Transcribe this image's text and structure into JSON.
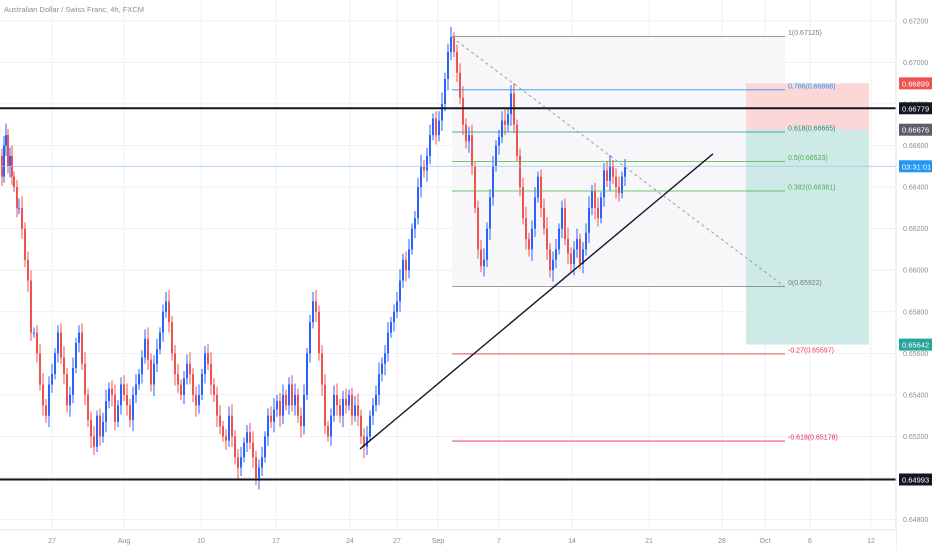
{
  "header": {
    "symbol_title": "Australian Dollar / Swiss Franc, 4h, FXCM"
  },
  "colors": {
    "up": "#2962ff",
    "down": "#ef5350",
    "grid": "#eef1f5",
    "axis_text": "#8a8e99",
    "stop_zone": "#fcd7d7",
    "target_zone": "#cdeae6",
    "fib_zone": "#f7f7f9"
  },
  "chart_data": {
    "type": "candlestick",
    "timeframe": "4h",
    "ylim": [
      0.6475,
      0.673
    ],
    "y_ticks": [
      "0.67200",
      "0.67000",
      "0.66800",
      "0.66600",
      "0.66400",
      "0.66200",
      "0.66000",
      "0.65800",
      "0.65600",
      "0.65400",
      "0.65200",
      "0.65000",
      "0.64800"
    ],
    "x_ticks": [
      "27",
      "Aug",
      "10",
      "17",
      "24",
      "27",
      "Sep",
      "7",
      "14",
      "21",
      "28",
      "Oct",
      "6",
      "12"
    ],
    "price_path": [
      [
        0,
        0.6655
      ],
      [
        2,
        0.6645
      ],
      [
        4,
        0.666
      ],
      [
        6,
        0.6665
      ],
      [
        8,
        0.665
      ],
      [
        10,
        0.6655
      ],
      [
        12,
        0.6645
      ],
      [
        14,
        0.664
      ],
      [
        17,
        0.663
      ],
      [
        19,
        0.663
      ],
      [
        22,
        0.662
      ],
      [
        25,
        0.6605
      ],
      [
        28,
        0.6595
      ],
      [
        31,
        0.657
      ],
      [
        34,
        0.657
      ],
      [
        37,
        0.656
      ],
      [
        40,
        0.6545
      ],
      [
        43,
        0.6535
      ],
      [
        46,
        0.653
      ],
      [
        49,
        0.6545
      ],
      [
        52,
        0.655
      ],
      [
        55,
        0.656
      ],
      [
        58,
        0.657
      ],
      [
        61,
        0.6558
      ],
      [
        64,
        0.655
      ],
      [
        67,
        0.6535
      ],
      [
        70,
        0.654
      ],
      [
        73,
        0.6553
      ],
      [
        76,
        0.6565
      ],
      [
        79,
        0.657
      ],
      [
        82,
        0.6555
      ],
      [
        85,
        0.654
      ],
      [
        88,
        0.6528
      ],
      [
        91,
        0.652
      ],
      [
        94,
        0.6515
      ],
      [
        97,
        0.653
      ],
      [
        100,
        0.652
      ],
      [
        103,
        0.6527
      ],
      [
        106,
        0.6537
      ],
      [
        109,
        0.6543
      ],
      [
        112,
        0.654
      ],
      [
        115,
        0.6527
      ],
      [
        118,
        0.6535
      ],
      [
        121,
        0.6545
      ],
      [
        124,
        0.654
      ],
      [
        127,
        0.6535
      ],
      [
        130,
        0.6528
      ],
      [
        133,
        0.654
      ],
      [
        136,
        0.6545
      ],
      [
        139,
        0.655
      ],
      [
        142,
        0.6558
      ],
      [
        145,
        0.6567
      ],
      [
        148,
        0.6557
      ],
      [
        151,
        0.6545
      ],
      [
        154,
        0.6555
      ],
      [
        157,
        0.6562
      ],
      [
        160,
        0.657
      ],
      [
        163,
        0.658
      ],
      [
        166,
        0.6585
      ],
      [
        169,
        0.6575
      ],
      [
        172,
        0.656
      ],
      [
        175,
        0.655
      ],
      [
        178,
        0.6545
      ],
      [
        181,
        0.654
      ],
      [
        184,
        0.6548
      ],
      [
        187,
        0.6555
      ],
      [
        190,
        0.655
      ],
      [
        193,
        0.654
      ],
      [
        196,
        0.6535
      ],
      [
        199,
        0.654
      ],
      [
        202,
        0.655
      ],
      [
        205,
        0.656
      ],
      [
        208,
        0.6555
      ],
      [
        211,
        0.6545
      ],
      [
        214,
        0.654
      ],
      [
        217,
        0.653
      ],
      [
        220,
        0.6525
      ],
      [
        223,
        0.652
      ],
      [
        226,
        0.6518
      ],
      [
        229,
        0.653
      ],
      [
        232,
        0.652
      ],
      [
        235,
        0.651
      ],
      [
        238,
        0.6505
      ],
      [
        241,
        0.651
      ],
      [
        244,
        0.6517
      ],
      [
        247,
        0.6522
      ],
      [
        250,
        0.6517
      ],
      [
        253,
        0.651
      ],
      [
        256,
        0.65
      ],
      [
        259,
        0.6505
      ],
      [
        262,
        0.651
      ],
      [
        265,
        0.652
      ],
      [
        268,
        0.653
      ],
      [
        271,
        0.6527
      ],
      [
        274,
        0.6533
      ],
      [
        277,
        0.6537
      ],
      [
        280,
        0.653
      ],
      [
        283,
        0.654
      ],
      [
        286,
        0.6535
      ],
      [
        289,
        0.6545
      ],
      [
        292,
        0.6535
      ],
      [
        295,
        0.654
      ],
      [
        298,
        0.653
      ],
      [
        301,
        0.6525
      ],
      [
        304,
        0.654
      ],
      [
        307,
        0.656
      ],
      [
        310,
        0.6575
      ],
      [
        313,
        0.6585
      ],
      [
        316,
        0.658
      ],
      [
        319,
        0.656
      ],
      [
        322,
        0.6545
      ],
      [
        325,
        0.6525
      ],
      [
        328,
        0.652
      ],
      [
        331,
        0.653
      ],
      [
        334,
        0.654
      ],
      [
        337,
        0.6535
      ],
      [
        340,
        0.653
      ],
      [
        343,
        0.6538
      ],
      [
        346,
        0.6535
      ],
      [
        349,
        0.654
      ],
      [
        352,
        0.653
      ],
      [
        355,
        0.6535
      ],
      [
        358,
        0.653
      ],
      [
        361,
        0.652
      ],
      [
        364,
        0.6515
      ],
      [
        367,
        0.652
      ],
      [
        370,
        0.653
      ],
      [
        373,
        0.6535
      ],
      [
        376,
        0.654
      ],
      [
        379,
        0.655
      ],
      [
        382,
        0.6555
      ],
      [
        385,
        0.656
      ],
      [
        388,
        0.657
      ],
      [
        391,
        0.6575
      ],
      [
        394,
        0.658
      ],
      [
        397,
        0.6585
      ],
      [
        400,
        0.6595
      ],
      [
        403,
        0.6605
      ],
      [
        406,
        0.66
      ],
      [
        409,
        0.661
      ],
      [
        412,
        0.662
      ],
      [
        415,
        0.6625
      ],
      [
        418,
        0.664
      ],
      [
        421,
        0.665
      ],
      [
        424,
        0.6648
      ],
      [
        427,
        0.6655
      ],
      [
        430,
        0.6665
      ],
      [
        433,
        0.6673
      ],
      [
        436,
        0.6665
      ],
      [
        439,
        0.6672
      ],
      [
        442,
        0.668
      ],
      [
        445,
        0.6692
      ],
      [
        448,
        0.6705
      ],
      [
        451,
        0.6712
      ],
      [
        454,
        0.6705
      ],
      [
        457,
        0.6695
      ],
      [
        460,
        0.6683
      ],
      [
        463,
        0.667
      ],
      [
        466,
        0.6662
      ],
      [
        469,
        0.6665
      ],
      [
        472,
        0.665
      ],
      [
        475,
        0.663
      ],
      [
        478,
        0.661
      ],
      [
        481,
        0.6602
      ],
      [
        484,
        0.6605
      ],
      [
        487,
        0.662
      ],
      [
        490,
        0.6635
      ],
      [
        493,
        0.665
      ],
      [
        496,
        0.666
      ],
      [
        499,
        0.6664
      ],
      [
        502,
        0.6672
      ],
      [
        505,
        0.667
      ],
      [
        508,
        0.6675
      ],
      [
        511,
        0.6685
      ],
      [
        514,
        0.667
      ],
      [
        517,
        0.6655
      ],
      [
        520,
        0.664
      ],
      [
        523,
        0.6625
      ],
      [
        526,
        0.6615
      ],
      [
        529,
        0.661
      ],
      [
        532,
        0.662
      ],
      [
        535,
        0.6635
      ],
      [
        538,
        0.6645
      ],
      [
        541,
        0.663
      ],
      [
        544,
        0.662
      ],
      [
        547,
        0.661
      ],
      [
        550,
        0.66
      ],
      [
        553,
        0.6605
      ],
      [
        556,
        0.661
      ],
      [
        559,
        0.662
      ],
      [
        562,
        0.663
      ],
      [
        565,
        0.6615
      ],
      [
        568,
        0.6608
      ],
      [
        571,
        0.6603
      ],
      [
        574,
        0.661
      ],
      [
        577,
        0.6615
      ],
      [
        580,
        0.6603
      ],
      [
        583,
        0.661
      ],
      [
        586,
        0.6618
      ],
      [
        589,
        0.663
      ],
      [
        592,
        0.6638
      ],
      [
        595,
        0.663
      ],
      [
        598,
        0.6625
      ],
      [
        601,
        0.6635
      ],
      [
        604,
        0.6648
      ],
      [
        607,
        0.6643
      ],
      [
        610,
        0.665
      ],
      [
        613,
        0.6645
      ],
      [
        616,
        0.664
      ],
      [
        619,
        0.6637
      ],
      [
        622,
        0.6645
      ],
      [
        625,
        0.665
      ]
    ],
    "horizontal_levels": [
      {
        "price": 0.66779,
        "label": "0.66779",
        "color": "#131722"
      },
      {
        "price": 0.64993,
        "label": "0.64993",
        "color": "#131722"
      }
    ],
    "current_price": {
      "price": 0.665,
      "label": "03:31:01",
      "color": "#2196f3"
    },
    "price_labels": [
      {
        "price": 0.66899,
        "label": "0.66899",
        "color": "#ef5350"
      },
      {
        "price": 0.66676,
        "label": "0.66676",
        "color": "#5d606b"
      },
      {
        "price": 0.65642,
        "label": "0.65642",
        "color": "#26a69a"
      }
    ],
    "fib": [
      {
        "price": 0.67125,
        "label": "1(0.67125)",
        "color": "#787b86"
      },
      {
        "price": 0.66868,
        "label": "0.786(0.66868)",
        "color": "#2196f3"
      },
      {
        "price": 0.66665,
        "label": "0.618(0.66665)",
        "color": "#089981"
      },
      {
        "price": 0.66523,
        "label": "0.5(0.66523)",
        "color": "#4caf50"
      },
      {
        "price": 0.66381,
        "label": "0.382(0.66381)",
        "color": "#4caf50"
      },
      {
        "price": 0.65922,
        "label": "0(0.65922)",
        "color": "#787b86"
      },
      {
        "price": 0.65597,
        "label": "-0.27(0.65597)",
        "color": "#f23645"
      },
      {
        "price": 0.65178,
        "label": "-0.618(0.65178)",
        "color": "#e91e63"
      }
    ],
    "trendlines": [
      {
        "from": [
          360,
          0.6514
        ],
        "to": [
          713,
          0.6656
        ],
        "color": "#131722",
        "style": "solid"
      },
      {
        "from": [
          452,
          0.6712
        ],
        "to": [
          785,
          0.6592
        ],
        "color": "#9598a1",
        "style": "dashed"
      }
    ],
    "position_box": {
      "x0": 746,
      "x1": 869,
      "stop": 0.66899,
      "entry": 0.66676,
      "target": 0.65642
    }
  }
}
